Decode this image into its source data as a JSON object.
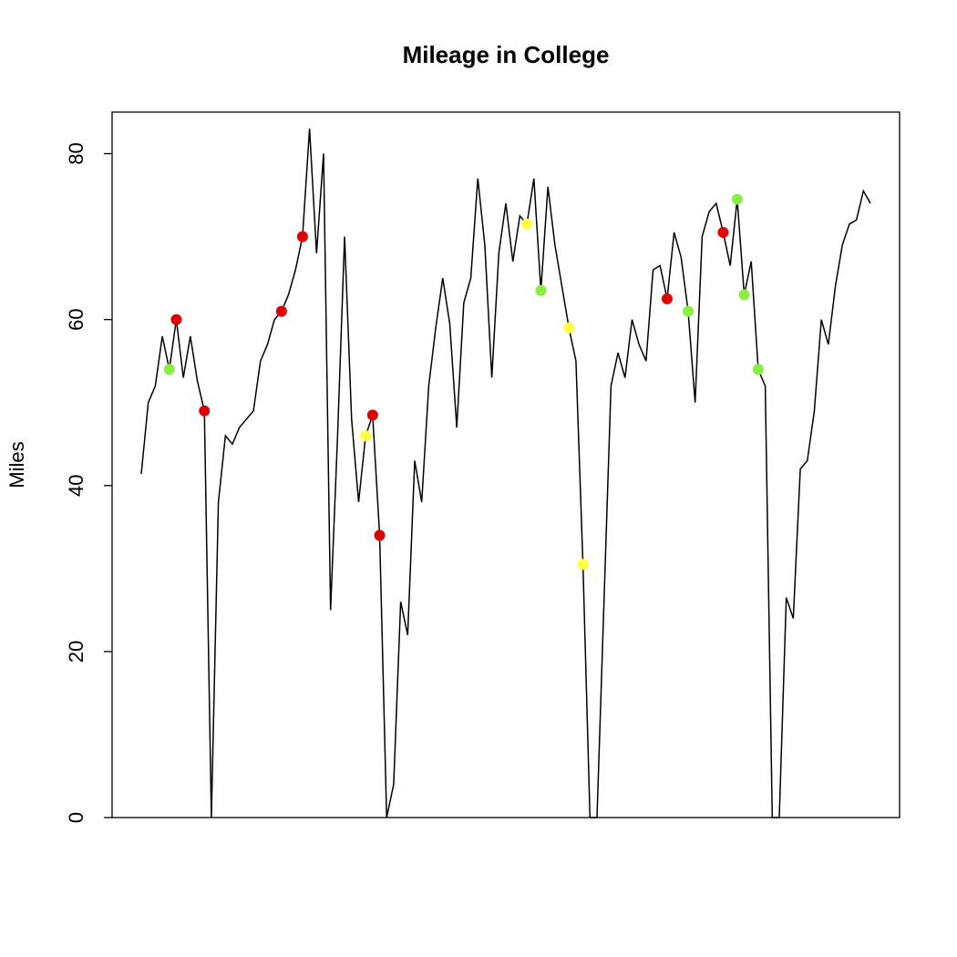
{
  "chart_data": {
    "type": "line",
    "title": "Mileage in College",
    "ylabel": "Miles",
    "x": [
      1,
      2,
      3,
      4,
      5,
      6,
      7,
      8,
      9,
      10,
      11,
      12,
      13,
      14,
      15,
      16,
      17,
      18,
      19,
      20,
      21,
      22,
      23,
      24,
      25,
      26,
      27,
      28,
      29,
      30,
      31,
      32,
      33,
      34,
      35,
      36,
      37,
      38,
      39,
      40,
      41,
      42,
      43,
      44,
      45,
      46,
      47,
      48,
      49,
      50,
      51,
      52,
      53,
      54,
      55,
      56,
      57,
      58,
      59,
      60,
      61,
      62,
      63,
      64,
      65,
      66,
      67,
      68,
      69,
      70,
      71,
      72,
      73,
      74,
      75,
      76,
      77,
      78,
      79,
      80,
      81,
      82,
      83,
      84,
      85,
      86,
      87,
      88,
      89,
      90,
      91,
      92,
      93,
      94,
      95,
      96,
      97,
      98,
      99,
      100,
      101,
      102,
      103,
      104,
      105
    ],
    "series": [
      {
        "color": "#000000",
        "values": [
          41.4,
          50,
          52,
          58,
          54,
          60,
          53,
          58,
          52.6,
          49,
          0,
          38,
          46,
          45,
          47,
          48,
          49,
          55,
          57,
          60,
          61,
          63,
          66,
          70,
          83,
          68,
          80,
          25,
          46,
          70,
          48,
          38,
          46,
          48.5,
          34,
          0,
          4,
          26,
          22,
          43,
          38,
          52,
          59,
          65,
          59.5,
          47,
          62,
          65,
          77,
          69,
          53,
          68,
          74,
          67,
          72.5,
          71.5,
          77,
          63.5,
          76,
          69,
          64,
          59,
          55,
          30.5,
          0,
          0,
          26,
          52,
          56,
          53,
          60,
          57,
          55,
          66,
          66.5,
          62.5,
          70.5,
          67.5,
          61,
          50,
          70,
          73,
          74,
          70.5,
          66.5,
          74.5,
          63,
          67,
          54,
          52,
          0,
          0,
          26.5,
          24,
          42,
          43,
          49,
          60,
          57,
          64,
          69,
          71.5,
          72,
          75.5,
          74
        ],
        "marker_colors": [
          null,
          null,
          null,
          null,
          "#88ee44",
          "#dd0000",
          null,
          null,
          null,
          "#dd0000",
          null,
          null,
          null,
          null,
          null,
          null,
          null,
          null,
          null,
          null,
          "#dd0000",
          null,
          null,
          "#dd0000",
          null,
          null,
          null,
          null,
          null,
          null,
          null,
          null,
          "#ffff44",
          "#dd0000",
          "#dd0000",
          null,
          null,
          null,
          null,
          null,
          null,
          null,
          null,
          null,
          null,
          null,
          null,
          null,
          null,
          null,
          null,
          null,
          null,
          null,
          null,
          "#ffff44",
          null,
          "#88ee44",
          null,
          null,
          null,
          "#ffff44",
          null,
          "#ffff44",
          null,
          null,
          null,
          null,
          null,
          null,
          null,
          null,
          null,
          null,
          null,
          "#dd0000",
          null,
          null,
          "#88ee44",
          null,
          null,
          null,
          null,
          "#dd0000",
          null,
          "#88ee44",
          "#88ee44",
          null,
          "#88ee44",
          null,
          null,
          null,
          null,
          null,
          null,
          null,
          null,
          null,
          null,
          null,
          null,
          null,
          null,
          null,
          null
        ]
      }
    ],
    "xlim": [
      -3.16,
      109.16
    ],
    "ylim": [
      0,
      85
    ],
    "yticks": [
      0,
      20,
      40,
      60,
      80
    ]
  }
}
